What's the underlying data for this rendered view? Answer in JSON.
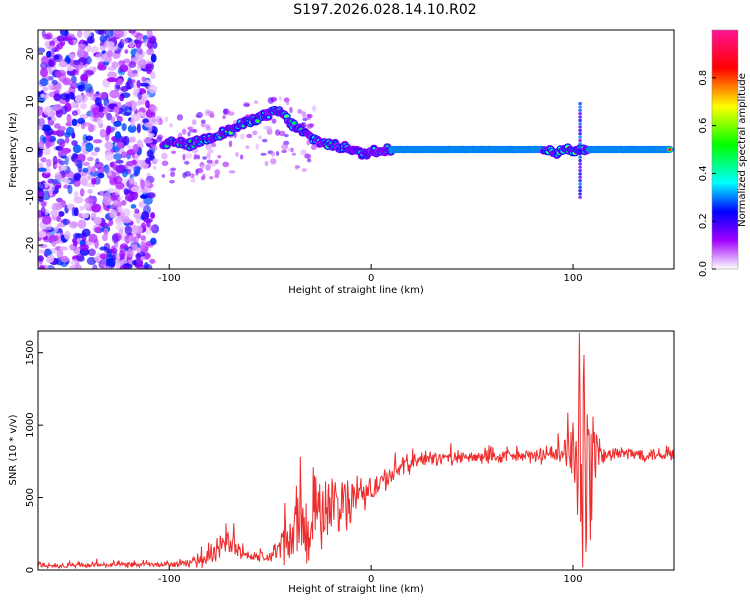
{
  "figure_title": "S197.2026.028.14.10.R02",
  "colors": {
    "snr_line": "#ee2c2c",
    "axis": "#000000"
  },
  "chart_data": [
    {
      "type": "heatmap",
      "panel": "top",
      "xlabel": "Height of straight line (km)",
      "ylabel": "Frequency (Hz)",
      "xlim": [
        -165,
        150
      ],
      "ylim": [
        -25,
        25
      ],
      "xticks": [
        -100,
        0,
        100
      ],
      "xtick_labels": [
        "-100",
        "0",
        "100"
      ],
      "yticks": [
        -20,
        -10,
        0,
        10,
        20
      ],
      "ytick_labels": [
        "-20",
        "-10",
        "0",
        "10",
        "20"
      ],
      "signal_track": {
        "x": [
          -103,
          -98,
          -90,
          -80,
          -70,
          -60,
          -50,
          -45,
          -40,
          -35,
          -30,
          -25,
          -20,
          -15,
          -10,
          -5,
          0,
          5,
          10,
          20,
          40,
          60,
          80,
          88,
          92,
          96,
          100,
          103,
          106,
          110,
          120,
          140,
          148
        ],
        "freq": [
          0.5,
          1.5,
          1.0,
          2.5,
          4.0,
          6.0,
          7.5,
          8.0,
          5.5,
          4.0,
          2.5,
          1.5,
          1.0,
          0.5,
          0.3,
          -1.0,
          -0.5,
          0.0,
          0.0,
          0.0,
          0.0,
          0.0,
          0.0,
          0.0,
          -1.0,
          0.5,
          -0.5,
          0.0,
          0.0,
          0.0,
          0.0,
          0.0,
          0.0
        ]
      },
      "colorbar": {
        "label": "Normalized spectral amplitude",
        "range": [
          0.0,
          1.0
        ],
        "ticks": [
          0.0,
          0.2,
          0.4,
          0.6,
          0.8
        ],
        "tick_labels": [
          "0.0",
          "0.2",
          "0.4",
          "0.6",
          "0.8"
        ],
        "colormap": [
          "#ffffff",
          "#a000ff",
          "#0000ff",
          "#00ffff",
          "#00ff00",
          "#ffff00",
          "#ff0000",
          "#ff1493"
        ]
      }
    },
    {
      "type": "line",
      "panel": "bottom",
      "xlabel": "Height of straight line (km)",
      "ylabel": "SNR (10 * v/v)",
      "xlim": [
        -165,
        150
      ],
      "ylim": [
        0,
        1650
      ],
      "xticks": [
        -100,
        0,
        100
      ],
      "xtick_labels": [
        "-100",
        "0",
        "100"
      ],
      "yticks": [
        0,
        500,
        1000,
        1500
      ],
      "ytick_labels": [
        "0",
        "500",
        "1000",
        "1500"
      ],
      "series": [
        {
          "name": "SNR",
          "x": [
            -165,
            -150,
            -130,
            -110,
            -95,
            -85,
            -80,
            -75,
            -72,
            -68,
            -60,
            -50,
            -45,
            -40,
            -35,
            -30,
            -25,
            -20,
            -15,
            -10,
            -5,
            0,
            5,
            10,
            15,
            20,
            25,
            30,
            40,
            50,
            60,
            70,
            80,
            90,
            95,
            100,
            103,
            105,
            107,
            109,
            111,
            113,
            116,
            120,
            130,
            140,
            150
          ],
          "values": [
            30,
            30,
            35,
            35,
            40,
            60,
            90,
            150,
            190,
            160,
            90,
            90,
            150,
            220,
            280,
            330,
            380,
            430,
            440,
            470,
            520,
            560,
            600,
            650,
            700,
            740,
            760,
            770,
            770,
            775,
            780,
            780,
            785,
            790,
            800,
            800,
            780,
            760,
            600,
            700,
            780,
            800,
            790,
            800,
            800,
            800,
            800
          ],
          "noise_amplitude": [
            20,
            20,
            20,
            20,
            20,
            40,
            60,
            90,
            120,
            80,
            40,
            40,
            120,
            200,
            260,
            300,
            280,
            250,
            200,
            160,
            120,
            100,
            90,
            80,
            70,
            60,
            55,
            50,
            45,
            45,
            45,
            45,
            50,
            60,
            90,
            250,
            600,
            800,
            750,
            600,
            300,
            100,
            60,
            50,
            50,
            50,
            50
          ]
        }
      ]
    }
  ]
}
